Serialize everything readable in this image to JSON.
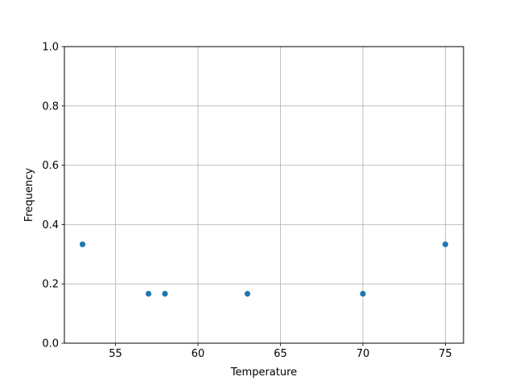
{
  "chart_data": {
    "type": "scatter",
    "title": "",
    "xlabel": "Temperature",
    "ylabel": "Frequency",
    "xlim": [
      51.9,
      76.1
    ],
    "ylim": [
      0.0,
      1.0
    ],
    "xticks": [
      55,
      60,
      65,
      70,
      75
    ],
    "xtick_labels": [
      "55",
      "60",
      "65",
      "70",
      "75"
    ],
    "yticks": [
      0.0,
      0.2,
      0.4,
      0.6,
      0.8,
      1.0
    ],
    "ytick_labels": [
      "0.0",
      "0.2",
      "0.4",
      "0.6",
      "0.8",
      "1.0"
    ],
    "grid": true,
    "color": "#1f77b4",
    "points": [
      {
        "x": 53,
        "y": 0.3333
      },
      {
        "x": 57,
        "y": 0.1667
      },
      {
        "x": 58,
        "y": 0.1667
      },
      {
        "x": 63,
        "y": 0.1667
      },
      {
        "x": 70,
        "y": 0.1667
      },
      {
        "x": 75,
        "y": 0.3333
      }
    ]
  }
}
